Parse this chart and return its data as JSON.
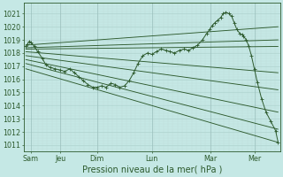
{
  "bg_color": "#c5e8e5",
  "grid_major_color": "#b0d4d0",
  "grid_minor_color": "#c0deda",
  "line_color": "#2d5a2d",
  "xlabel_text": "Pression niveau de la mer( hPa )",
  "xlim": [
    0,
    7.0
  ],
  "ylim": [
    1010.5,
    1021.8
  ],
  "yticks": [
    1011,
    1012,
    1013,
    1014,
    1015,
    1016,
    1017,
    1018,
    1019,
    1020,
    1021
  ],
  "xtick_labels": [
    "Sam",
    "Jeu",
    "Dim",
    "Lun",
    "Mar",
    "Mer"
  ],
  "xtick_positions": [
    0.18,
    1.0,
    2.0,
    3.5,
    5.1,
    6.3
  ],
  "vline_positions": [
    0.18,
    1.0,
    2.0,
    3.5,
    5.1,
    6.3
  ],
  "tick_fontsize": 5.8,
  "xlabel_fontsize": 7.0,
  "fan_lines": [
    {
      "x0": 0.05,
      "y0": 1018.4,
      "x1": 6.95,
      "y1": 1019.0
    },
    {
      "x0": 0.05,
      "y0": 1018.3,
      "x1": 6.95,
      "y1": 1018.5
    },
    {
      "x0": 0.05,
      "y0": 1018.1,
      "x1": 6.95,
      "y1": 1016.5
    },
    {
      "x0": 0.05,
      "y0": 1017.8,
      "x1": 6.95,
      "y1": 1015.2
    },
    {
      "x0": 0.05,
      "y0": 1017.5,
      "x1": 6.95,
      "y1": 1013.5
    },
    {
      "x0": 0.05,
      "y0": 1017.2,
      "x1": 6.95,
      "y1": 1012.2
    },
    {
      "x0": 0.05,
      "y0": 1016.8,
      "x1": 6.95,
      "y1": 1011.2
    },
    {
      "x0": 0.05,
      "y0": 1018.6,
      "x1": 6.95,
      "y1": 1020.0
    }
  ],
  "curve_x": [
    0.05,
    0.1,
    0.15,
    0.2,
    0.28,
    0.38,
    0.5,
    0.6,
    0.72,
    0.85,
    1.0,
    1.12,
    1.25,
    1.38,
    1.5,
    1.62,
    1.75,
    1.88,
    2.0,
    2.12,
    2.25,
    2.38,
    2.5,
    2.62,
    2.75,
    2.88,
    3.0,
    3.12,
    3.25,
    3.38,
    3.5,
    3.62,
    3.75,
    3.88,
    4.0,
    4.12,
    4.25,
    4.38,
    4.5,
    4.62,
    4.75,
    4.88,
    5.0,
    5.08,
    5.15,
    5.22,
    5.3,
    5.38,
    5.45,
    5.52,
    5.6,
    5.68,
    5.75,
    5.82,
    5.9,
    5.96,
    6.0,
    6.08,
    6.15,
    6.22,
    6.3,
    6.38,
    6.5,
    6.62,
    6.75,
    6.88,
    6.95
  ],
  "curve_y": [
    1018.5,
    1018.7,
    1018.9,
    1018.8,
    1018.5,
    1018.1,
    1017.6,
    1017.1,
    1016.9,
    1016.8,
    1016.7,
    1016.6,
    1016.8,
    1016.5,
    1016.2,
    1015.9,
    1015.6,
    1015.4,
    1015.4,
    1015.5,
    1015.4,
    1015.7,
    1015.6,
    1015.4,
    1015.5,
    1015.9,
    1016.5,
    1017.2,
    1017.8,
    1018.0,
    1017.9,
    1018.1,
    1018.3,
    1018.2,
    1018.1,
    1018.0,
    1018.2,
    1018.3,
    1018.2,
    1018.4,
    1018.6,
    1019.0,
    1019.5,
    1019.8,
    1020.1,
    1020.3,
    1020.5,
    1020.7,
    1021.0,
    1021.1,
    1021.0,
    1020.8,
    1020.3,
    1019.8,
    1019.5,
    1019.4,
    1019.3,
    1019.0,
    1018.5,
    1017.8,
    1016.8,
    1015.8,
    1014.5,
    1013.5,
    1012.8,
    1012.1,
    1011.2
  ]
}
